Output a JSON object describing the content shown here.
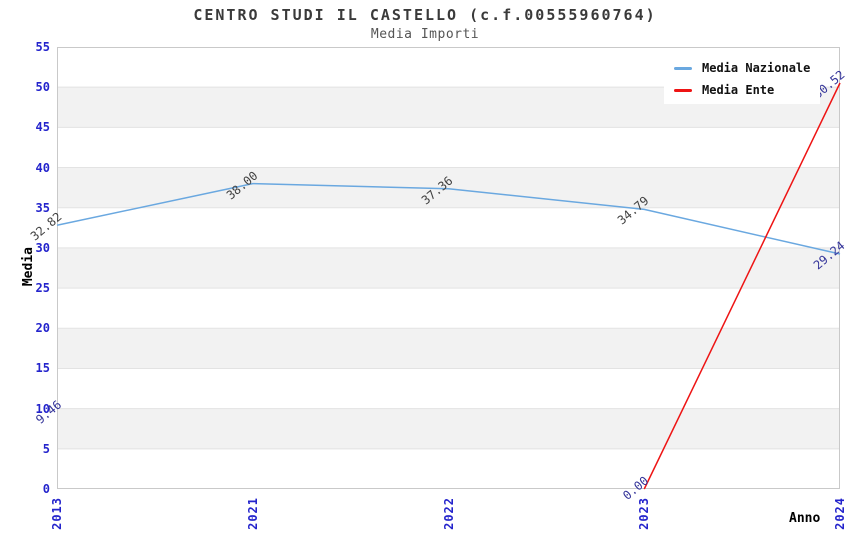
{
  "chart_data": {
    "type": "line",
    "title": "CENTRO STUDI IL CASTELLO (c.f.00555960764)",
    "subtitle": "Media Importi",
    "xlabel": "Anno",
    "ylabel": "Media",
    "categories": [
      "2013",
      "2021",
      "2022",
      "2023",
      "2024"
    ],
    "ylim": [
      0,
      55
    ],
    "ytick_step": 5,
    "yticks": [
      0,
      5,
      10,
      15,
      20,
      25,
      30,
      35,
      40,
      45,
      50,
      55
    ],
    "grid": "horizontal-gridlines-with-alternating-bands",
    "legend_position": "top-right",
    "data_label_decimals": 2,
    "series": [
      {
        "name": "Media Nazionale",
        "color": "#6aa8e0",
        "label_color": "#404040",
        "label_color_overrides": {
          "4": "#333399"
        },
        "values": [
          32.82,
          38.0,
          37.36,
          34.79,
          29.24
        ]
      },
      {
        "name": "Media Ente",
        "color": "#ee1414",
        "label_color": "#333399",
        "values": [
          9.46,
          null,
          null,
          0.0,
          50.52
        ]
      }
    ]
  },
  "colors": {
    "tick_label": "#2424cc",
    "title": "#3a3a3a",
    "subtitle": "#555555",
    "band": "#f2f2f2",
    "gridline": "#e3e3e3",
    "plot_border": "#c9c9c9",
    "background": "#ffffff"
  }
}
